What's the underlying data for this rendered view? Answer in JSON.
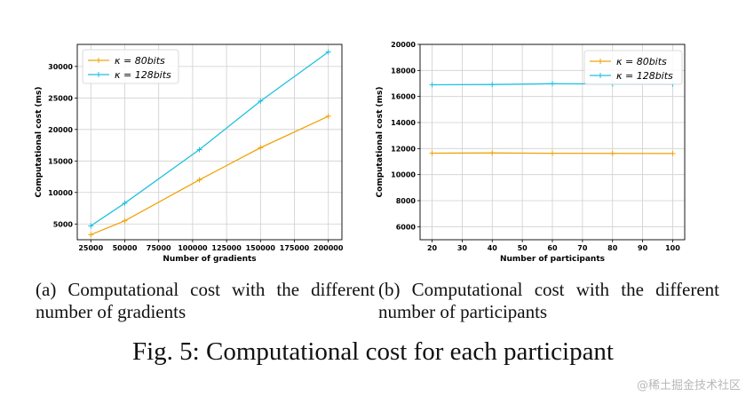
{
  "colors": {
    "orange": "#f0a30a",
    "cyan": "#1fc0e0",
    "grid": "#cfcfcf"
  },
  "captions": {
    "a": "(a) Computational cost with the different number of gradients",
    "b": "(b) Computational cost with the different number of participants",
    "figure": "Fig. 5: Computational cost for each participant"
  },
  "watermark": "@稀土掘金技术社区",
  "chart_data": [
    {
      "type": "line",
      "title": "",
      "xlabel": "Number of gradients",
      "ylabel": "Computational cost (ms)",
      "xlim": [
        15000,
        210000
      ],
      "ylim": [
        2500,
        33500
      ],
      "xticks": [
        25000,
        50000,
        75000,
        100000,
        125000,
        150000,
        175000,
        200000
      ],
      "yticks": [
        5000,
        10000,
        15000,
        20000,
        25000,
        30000
      ],
      "grid": true,
      "legend_position": "top-left",
      "x": [
        25000,
        50000,
        105000,
        150000,
        200000
      ],
      "series": [
        {
          "name": "κ = 80bits",
          "color": "#f0a30a",
          "values": [
            3300,
            5500,
            12000,
            17100,
            22100
          ]
        },
        {
          "name": "κ = 128bits",
          "color": "#1fc0e0",
          "values": [
            4700,
            8300,
            16800,
            24500,
            32300
          ]
        }
      ]
    },
    {
      "type": "line",
      "title": "",
      "xlabel": "Number of participants",
      "ylabel": "Computational cost (ms)",
      "xlim": [
        16,
        104
      ],
      "ylim": [
        5000,
        20000
      ],
      "xticks": [
        20,
        30,
        40,
        50,
        60,
        70,
        80,
        90,
        100
      ],
      "yticks": [
        6000,
        8000,
        10000,
        12000,
        14000,
        16000,
        18000,
        20000
      ],
      "grid": true,
      "legend_position": "top-right",
      "x": [
        20,
        40,
        60,
        80,
        100
      ],
      "series": [
        {
          "name": "κ = 80bits",
          "color": "#f0a30a",
          "values": [
            11650,
            11660,
            11640,
            11630,
            11620
          ]
        },
        {
          "name": "κ = 128bits",
          "color": "#1fc0e0",
          "values": [
            16900,
            16920,
            16980,
            16960,
            16950
          ]
        }
      ]
    }
  ]
}
